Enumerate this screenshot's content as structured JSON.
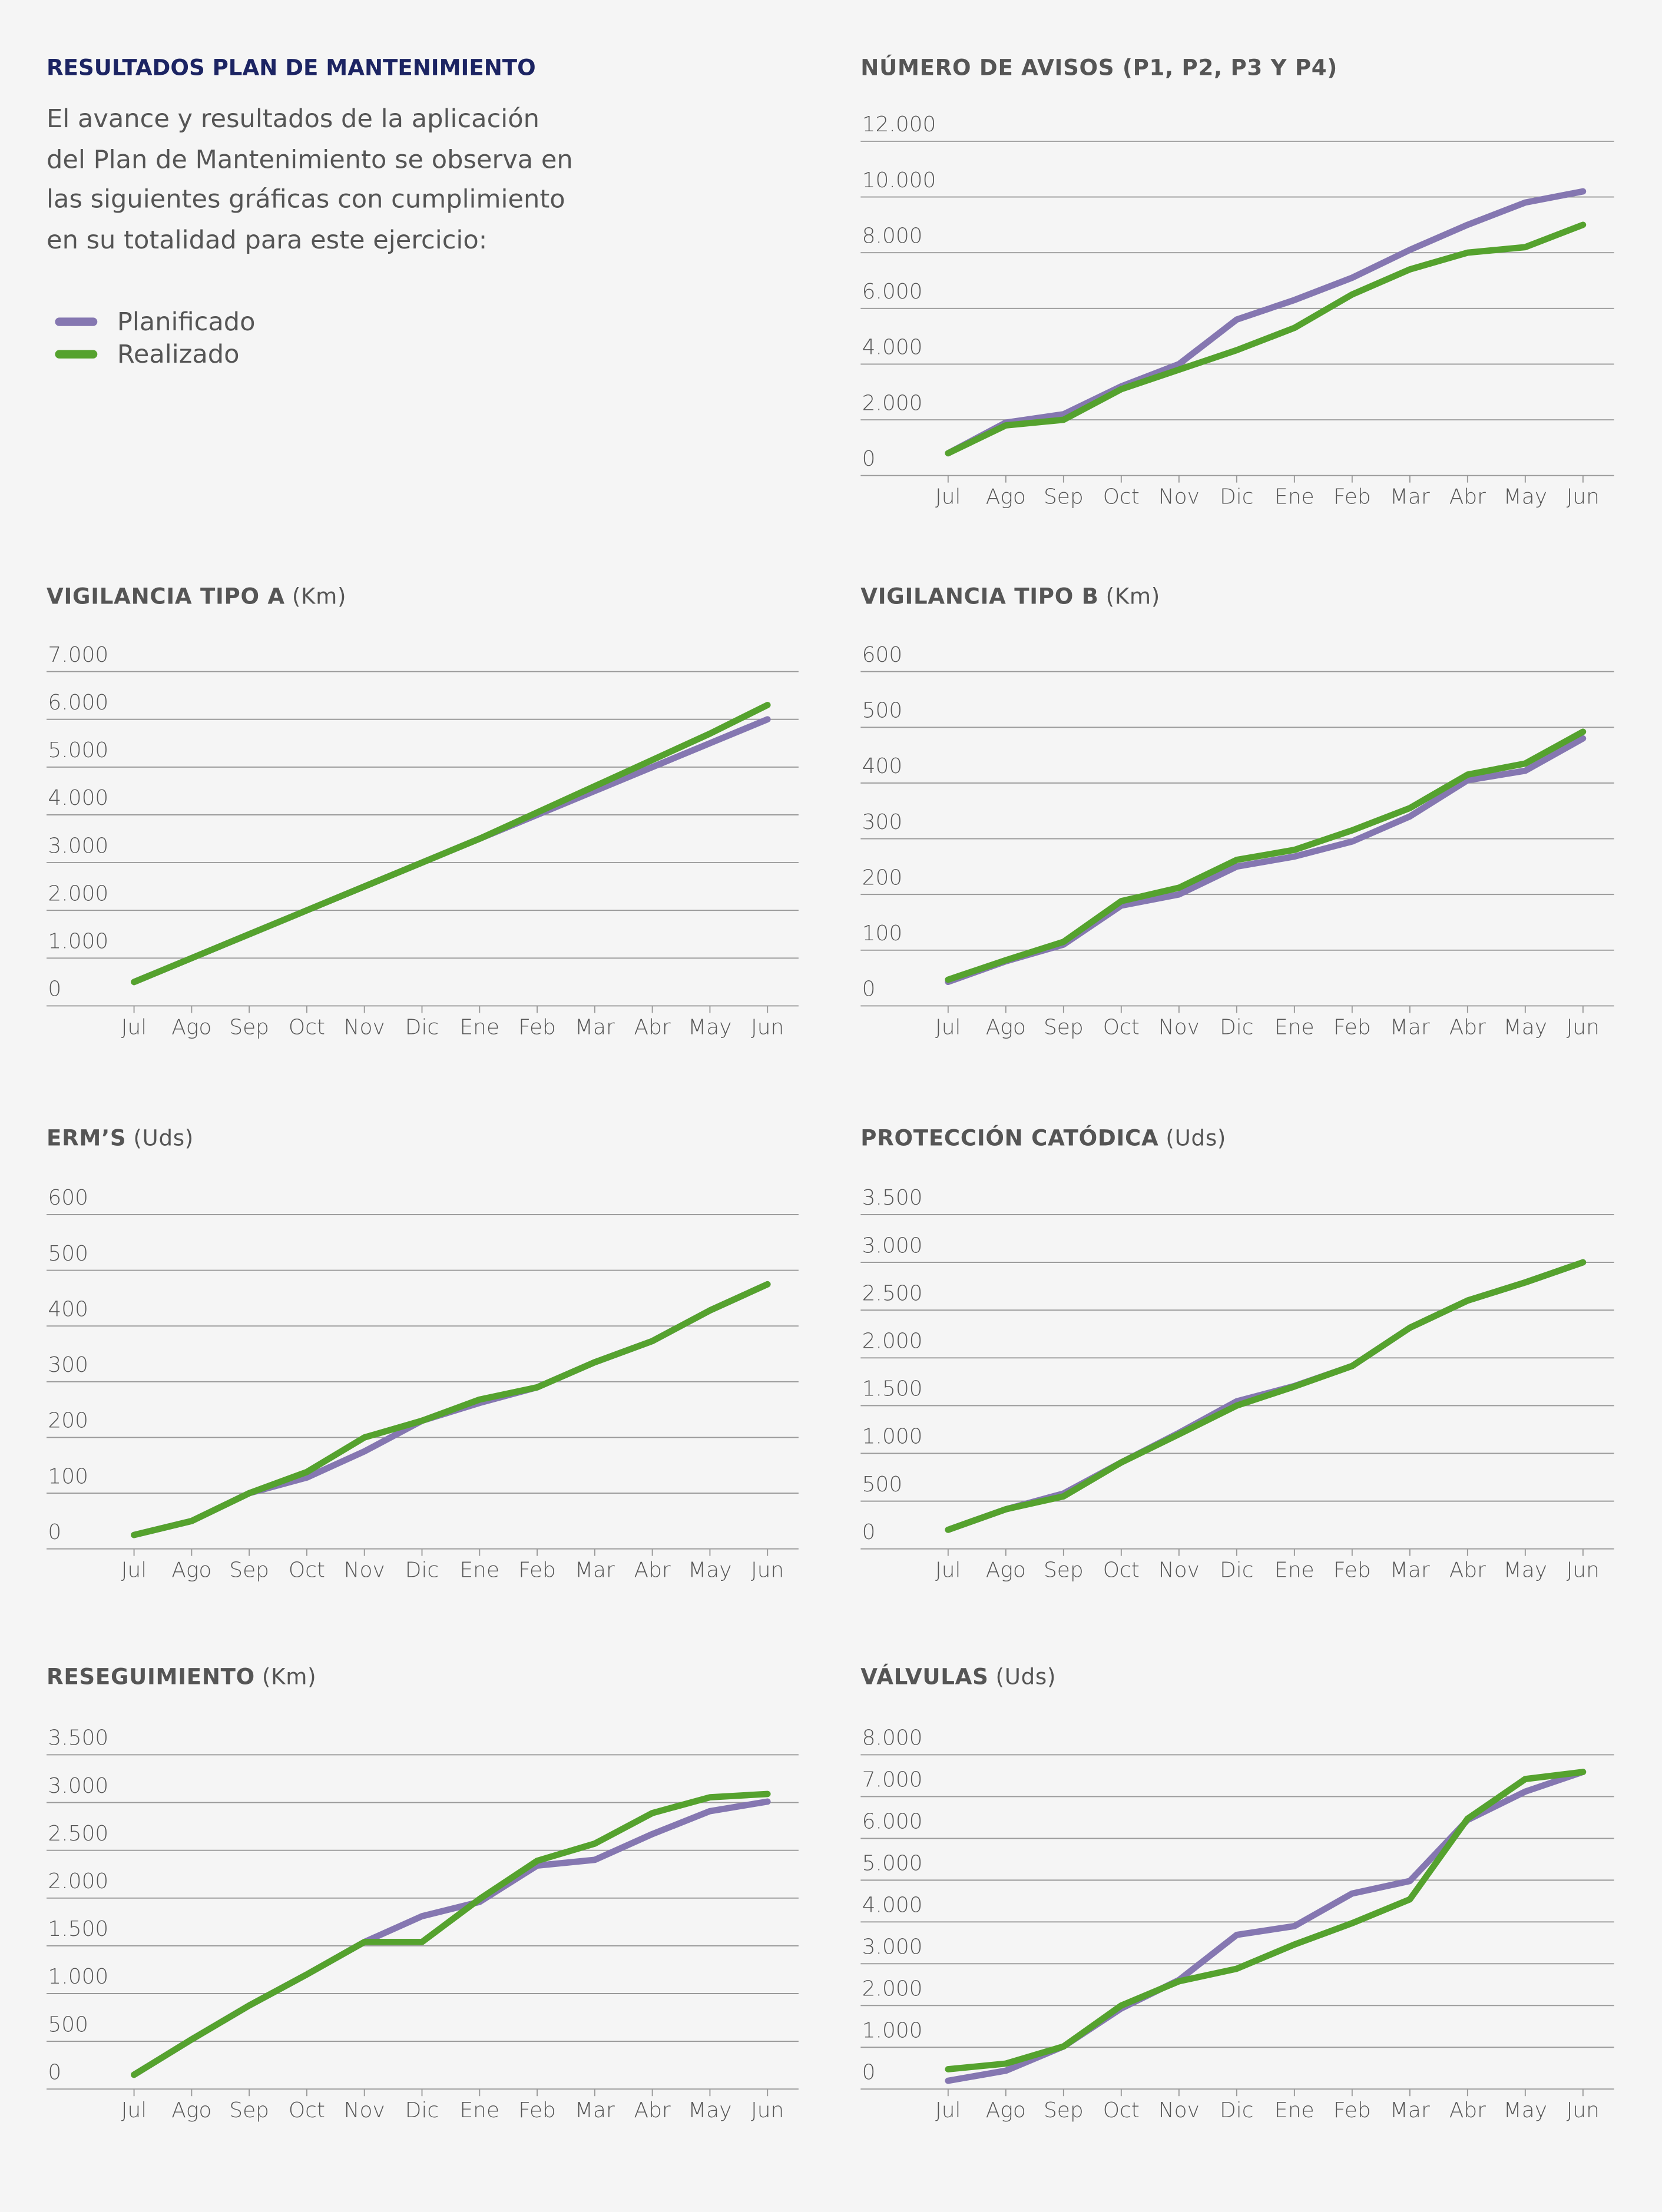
{
  "header": {
    "title": "RESULTADOS PLAN DE MANTENIMIENTO",
    "lines": [
      "El avance y resultados de la aplicación",
      "del Plan de Mantenimiento se observa en",
      "las siguientes gráficas con cumplimiento",
      "en su totalidad para este ejercicio:"
    ]
  },
  "chart_data": [
    {
      "type": "line",
      "title": "NÚMERO DE AVISOS (P1, P2, P3 Y P4)",
      "categories": [
        "Jul",
        "Ago",
        "Sep",
        "Oct",
        "Nov",
        "Dic",
        "Ene",
        "Feb",
        "Mar",
        "Abr",
        "May",
        "Jun"
      ],
      "series": [
        {
          "name": "Planificado",
          "color": "#8577b1",
          "values": [
            800,
            1900,
            2200,
            3200,
            4000,
            5600,
            6300,
            7100,
            8100,
            9000,
            9800,
            10200
          ]
        },
        {
          "name": "Realizado",
          "color": "#55a22e",
          "values": [
            800,
            1800,
            2000,
            3100,
            3800,
            4500,
            5300,
            6500,
            7400,
            8000,
            8200,
            9000
          ]
        }
      ],
      "ylim": [
        0,
        12000
      ],
      "yticks": [
        0,
        {
          "value": 2000,
          "label": "2.000"
        },
        {
          "value": 4000,
          "label": "4.000"
        },
        {
          "value": 6000,
          "label": "6.000"
        },
        {
          "value": 8000,
          "label": "8.000"
        },
        {
          "value": 10000,
          "label": "10.000"
        },
        {
          "value": 12000,
          "label": "12.000"
        }
      ],
      "grid": true
    },
    {
      "type": "line",
      "title": "VIGILANCIA TIPO A",
      "unit": "(Km)",
      "categories": [
        "Jul",
        "Ago",
        "Sep",
        "Oct",
        "Nov",
        "Dic",
        "Ene",
        "Feb",
        "Mar",
        "Abr",
        "May",
        "Jun"
      ],
      "series": [
        {
          "name": "Planificado",
          "color": "#8577b1",
          "values": [
            500,
            1000,
            1500,
            2000,
            2500,
            3000,
            3500,
            4000,
            4500,
            5000,
            5500,
            6000
          ]
        },
        {
          "name": "Realizado",
          "color": "#55a22e",
          "values": [
            500,
            1000,
            1500,
            2000,
            2500,
            3000,
            3500,
            4050,
            4600,
            5150,
            5700,
            6300
          ]
        }
      ],
      "ylim": [
        0,
        7000
      ],
      "yticks": [
        0,
        {
          "value": 1000,
          "label": "1.000"
        },
        {
          "value": 2000,
          "label": "2.000"
        },
        {
          "value": 3000,
          "label": "3.000"
        },
        {
          "value": 4000,
          "label": "4.000"
        },
        {
          "value": 5000,
          "label": "5.000"
        },
        {
          "value": 6000,
          "label": "6.000"
        },
        {
          "value": 7000,
          "label": "7.000"
        }
      ],
      "grid": true
    },
    {
      "type": "line",
      "title": "VIGILANCIA TIPO B",
      "unit": "(Km)",
      "categories": [
        "Jul",
        "Ago",
        "Sep",
        "Oct",
        "Nov",
        "Dic",
        "Ene",
        "Feb",
        "Mar",
        "Abr",
        "May",
        "Jun"
      ],
      "series": [
        {
          "name": "Planificado",
          "color": "#8577b1",
          "values": [
            43,
            80,
            110,
            180,
            200,
            250,
            268,
            295,
            340,
            405,
            422,
            480
          ]
        },
        {
          "name": "Realizado",
          "color": "#55a22e",
          "values": [
            47,
            82,
            115,
            188,
            212,
            262,
            280,
            315,
            355,
            415,
            435,
            492
          ]
        }
      ],
      "ylim": [
        0,
        600
      ],
      "yticks": [
        0,
        100,
        200,
        300,
        400,
        500,
        600
      ],
      "grid": true
    },
    {
      "type": "line",
      "title": "ERM’S",
      "unit": "(Uds)",
      "categories": [
        "Jul",
        "Ago",
        "Sep",
        "Oct",
        "Nov",
        "Dic",
        "Ene",
        "Feb",
        "Mar",
        "Abr",
        "May",
        "Jun"
      ],
      "series": [
        {
          "name": "Planificado",
          "color": "#8577b1",
          "values": [
            25,
            50,
            100,
            128,
            175,
            230,
            262,
            290,
            335,
            373,
            428,
            475
          ]
        },
        {
          "name": "Realizado",
          "color": "#55a22e",
          "values": [
            25,
            50,
            100,
            138,
            200,
            230,
            268,
            290,
            335,
            373,
            428,
            475
          ]
        }
      ],
      "ylim": [
        0,
        600
      ],
      "yticks": [
        0,
        100,
        200,
        300,
        400,
        500,
        600
      ],
      "grid": true
    },
    {
      "type": "line",
      "title": "PROTECCIÓN CATÓDICA",
      "unit": "(Uds)",
      "categories": [
        "Jul",
        "Ago",
        "Sep",
        "Oct",
        "Nov",
        "Dic",
        "Ene",
        "Feb",
        "Mar",
        "Abr",
        "May",
        "Jun"
      ],
      "series": [
        {
          "name": "Planificado",
          "color": "#8577b1",
          "values": [
            200,
            415,
            580,
            905,
            1215,
            1545,
            1705,
            1915,
            2315,
            2600,
            2790,
            3000
          ]
        },
        {
          "name": "Realizado",
          "color": "#55a22e",
          "values": [
            200,
            415,
            550,
            905,
            1200,
            1500,
            1700,
            1915,
            2315,
            2600,
            2790,
            3000
          ]
        }
      ],
      "ylim": [
        0,
        3500
      ],
      "yticks": [
        0,
        500,
        {
          "value": 1000,
          "label": "1.000"
        },
        {
          "value": 1500,
          "label": "1.500"
        },
        {
          "value": 2000,
          "label": "2.000"
        },
        {
          "value": 2500,
          "label": "2.500"
        },
        {
          "value": 3000,
          "label": "3.000"
        },
        {
          "value": 3500,
          "label": "3.500"
        }
      ],
      "grid": true
    },
    {
      "type": "line",
      "title": "RESEGUIMIENTO",
      "unit": "(Km)",
      "categories": [
        "Jul",
        "Ago",
        "Sep",
        "Oct",
        "Nov",
        "Dic",
        "Ene",
        "Feb",
        "Mar",
        "Abr",
        "May",
        "Jun"
      ],
      "series": [
        {
          "name": "Planificado",
          "color": "#8577b1",
          "values": [
            150,
            520,
            875,
            1200,
            1540,
            1810,
            1960,
            2340,
            2400,
            2670,
            2910,
            3010
          ]
        },
        {
          "name": "Realizado",
          "color": "#55a22e",
          "values": [
            150,
            520,
            875,
            1200,
            1540,
            1540,
            1990,
            2390,
            2570,
            2890,
            3055,
            3090
          ]
        }
      ],
      "ylim": [
        0,
        3500
      ],
      "yticks": [
        0,
        500,
        {
          "value": 1000,
          "label": "1.000"
        },
        {
          "value": 1500,
          "label": "1.500"
        },
        {
          "value": 2000,
          "label": "2.000"
        },
        {
          "value": 2500,
          "label": "2.500"
        },
        {
          "value": 3000,
          "label": "3.000"
        },
        {
          "value": 3500,
          "label": "3.500"
        }
      ],
      "grid": true
    },
    {
      "type": "line",
      "title": "VÁLVULAS",
      "unit": "(Uds)",
      "categories": [
        "Jul",
        "Ago",
        "Sep",
        "Oct",
        "Nov",
        "Dic",
        "Ene",
        "Feb",
        "Mar",
        "Abr",
        "May",
        "Jun"
      ],
      "series": [
        {
          "name": "Planificado",
          "color": "#8577b1",
          "values": [
            200,
            440,
            1020,
            1930,
            2610,
            3690,
            3900,
            4680,
            4980,
            6440,
            7120,
            7590
          ]
        },
        {
          "name": "Realizado",
          "color": "#55a22e",
          "values": [
            475,
            610,
            1020,
            2000,
            2580,
            2880,
            3460,
            3970,
            4540,
            6470,
            7420,
            7590
          ]
        }
      ],
      "ylim": [
        0,
        8000
      ],
      "yticks": [
        0,
        {
          "value": 1000,
          "label": "1.000"
        },
        {
          "value": 2000,
          "label": "2.000"
        },
        {
          "value": 3000,
          "label": "3.000"
        },
        {
          "value": 4000,
          "label": "4.000"
        },
        {
          "value": 5000,
          "label": "5.000"
        },
        {
          "value": 6000,
          "label": "6.000"
        },
        {
          "value": 7000,
          "label": "7.000"
        },
        {
          "value": 8000,
          "label": "8.000"
        }
      ],
      "grid": true
    }
  ]
}
